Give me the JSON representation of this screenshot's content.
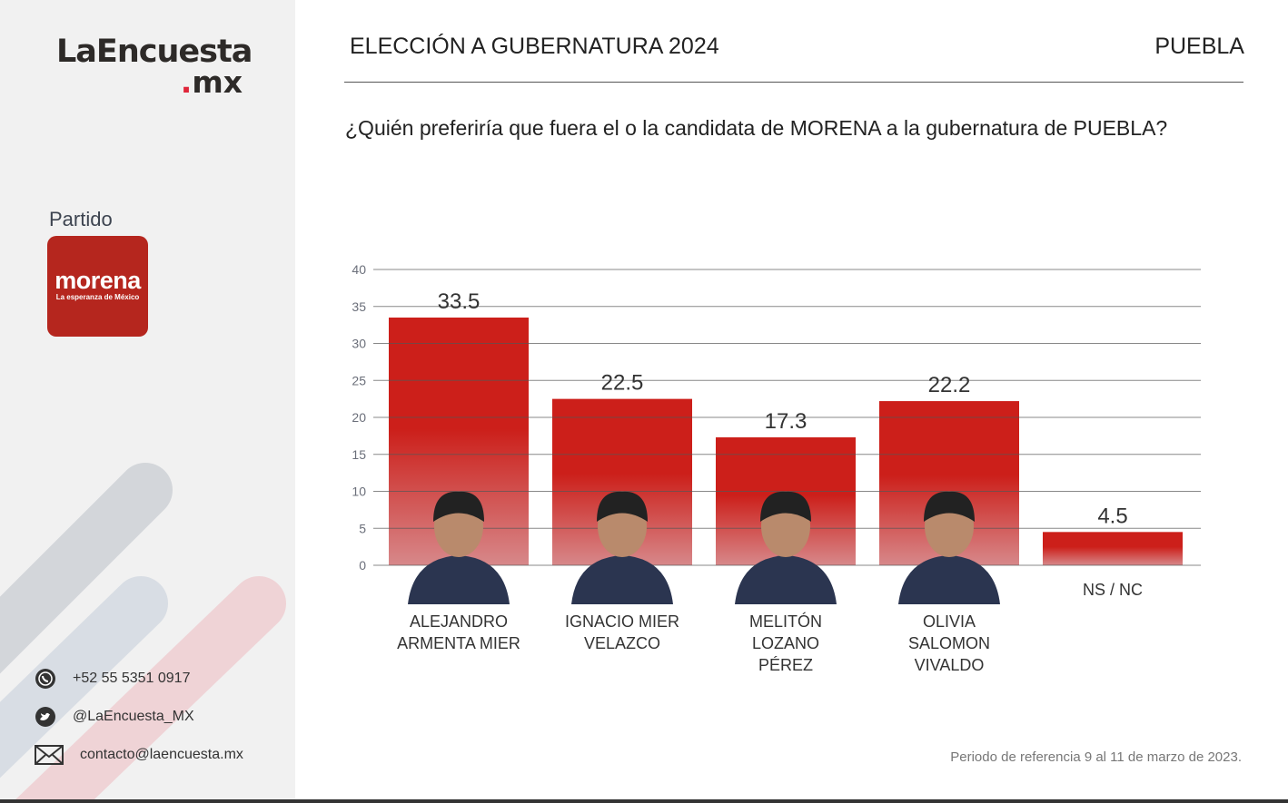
{
  "brand": {
    "line1": "LaEncuesta",
    "line2_dot": ".",
    "line2": "mx"
  },
  "sidebar": {
    "party_label": "Partido",
    "party_logo": {
      "name": "morena",
      "tagline": "La esperanza de México",
      "color": "#b5261e"
    },
    "contacts": [
      {
        "icon": "whatsapp-icon",
        "text": "+52 55 5351 0917"
      },
      {
        "icon": "twitter-icon",
        "text": "@LaEncuesta_MX"
      },
      {
        "icon": "mail-icon",
        "text": "contacto@laencuesta.mx"
      }
    ]
  },
  "header": {
    "title": "ELECCIÓN A GUBERNATURA 2024",
    "state": "PUEBLA"
  },
  "question": "¿Quién preferiría que fuera el o la candidata de MORENA a la gubernatura de PUEBLA?",
  "footnote": "Periodo de referencia 9 al 11 de marzo de 2023.",
  "chart_data": {
    "type": "bar",
    "categories": [
      [
        "ALEJANDRO",
        "ARMENTA MIER"
      ],
      [
        "IGNACIO MIER",
        "VELAZCO"
      ],
      [
        "MELITÓN",
        "LOZANO",
        "PÉREZ"
      ],
      [
        "OLIVIA",
        "SALOMON",
        "VIVALDO"
      ],
      [
        "NS / NC"
      ]
    ],
    "values": [
      33.5,
      22.5,
      17.3,
      22.2,
      4.5
    ],
    "data_labels": [
      "33.5",
      "22.5",
      "17.3",
      "22.2",
      "4.5"
    ],
    "has_photo": [
      true,
      true,
      true,
      true,
      false
    ],
    "ylim": [
      0,
      40
    ],
    "yticks": [
      0,
      5,
      10,
      15,
      20,
      25,
      30,
      35,
      40
    ],
    "grid": true,
    "bar_color": "#cc1f1a",
    "title": "",
    "xlabel": "",
    "ylabel": ""
  }
}
